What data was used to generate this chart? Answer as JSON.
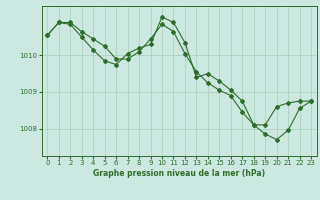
{
  "title": "Graphe pression niveau de la mer (hPa)",
  "bg_color": "#cce8e0",
  "grid_color": "#aaccbb",
  "line_color": "#2d6e2d",
  "marker_color": "#2d6e2d",
  "xlim": [
    -0.5,
    23.5
  ],
  "ylim": [
    1007.25,
    1011.35
  ],
  "yticks": [
    1008,
    1009,
    1010
  ],
  "xticks": [
    0,
    1,
    2,
    3,
    4,
    5,
    6,
    7,
    8,
    9,
    10,
    11,
    12,
    13,
    14,
    15,
    16,
    17,
    18,
    19,
    20,
    21,
    22,
    23
  ],
  "series1": {
    "x": [
      0,
      1,
      2,
      3,
      4,
      5,
      6,
      7,
      8,
      9,
      10,
      11,
      12,
      13,
      14,
      15,
      16,
      17,
      18,
      19,
      20,
      21,
      22,
      23
    ],
    "y": [
      1010.55,
      1010.9,
      1010.9,
      1010.65,
      1010.45,
      1010.25,
      1009.9,
      1009.9,
      1010.1,
      1010.45,
      1010.85,
      1010.65,
      1010.05,
      1009.55,
      1009.25,
      1009.05,
      1008.9,
      1008.45,
      1008.1,
      1008.1,
      1008.6,
      1008.7,
      1008.75,
      1008.75
    ]
  },
  "series2": {
    "x": [
      0,
      1,
      2,
      3,
      4,
      5,
      6,
      7,
      8,
      9,
      10,
      11,
      12,
      13,
      14,
      15,
      16,
      17,
      18,
      19,
      20,
      21,
      22,
      23
    ],
    "y": [
      1010.55,
      1010.9,
      1010.85,
      1010.5,
      1010.15,
      1009.85,
      1009.75,
      1010.05,
      1010.2,
      1010.3,
      1011.05,
      1010.9,
      1010.35,
      1009.4,
      1009.5,
      1009.3,
      1009.05,
      1008.75,
      1008.1,
      1007.85,
      1007.7,
      1007.95,
      1008.55,
      1008.75
    ]
  }
}
